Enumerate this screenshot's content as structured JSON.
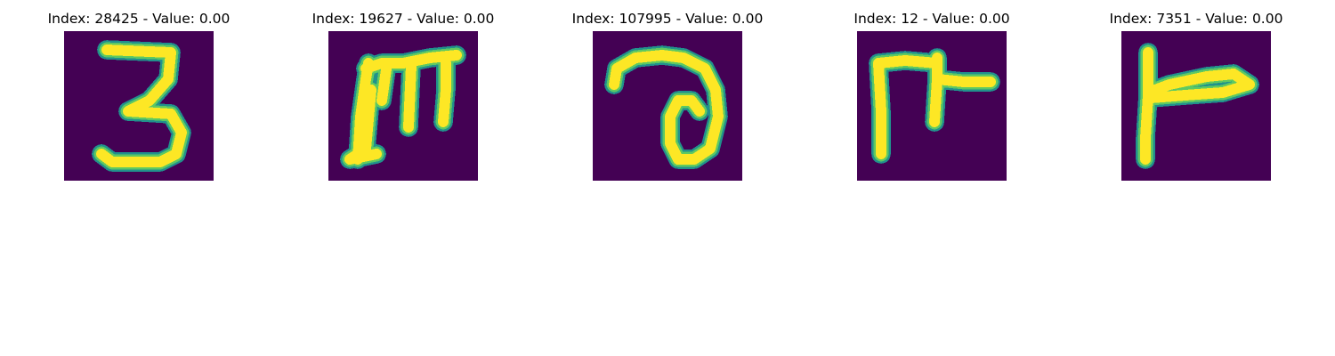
{
  "colors": {
    "background": "#440154",
    "stroke_core": "#fde725",
    "stroke_mid": "#5ec962",
    "stroke_edge": "#21918c"
  },
  "panels": [
    {
      "title": "Index: 28425 - Value: 0.00",
      "glyph": "digit-three"
    },
    {
      "title": "Index: 19627 - Value: 0.00",
      "glyph": "letter-m"
    },
    {
      "title": "Index: 107995 - Value: 0.00",
      "glyph": "loop-stroke"
    },
    {
      "title": "Index: 12 - Value: 0.00",
      "glyph": "bracket-stroke"
    },
    {
      "title": "Index: 7351 - Value: 0.00",
      "glyph": "t-shaped-stroke"
    }
  ]
}
